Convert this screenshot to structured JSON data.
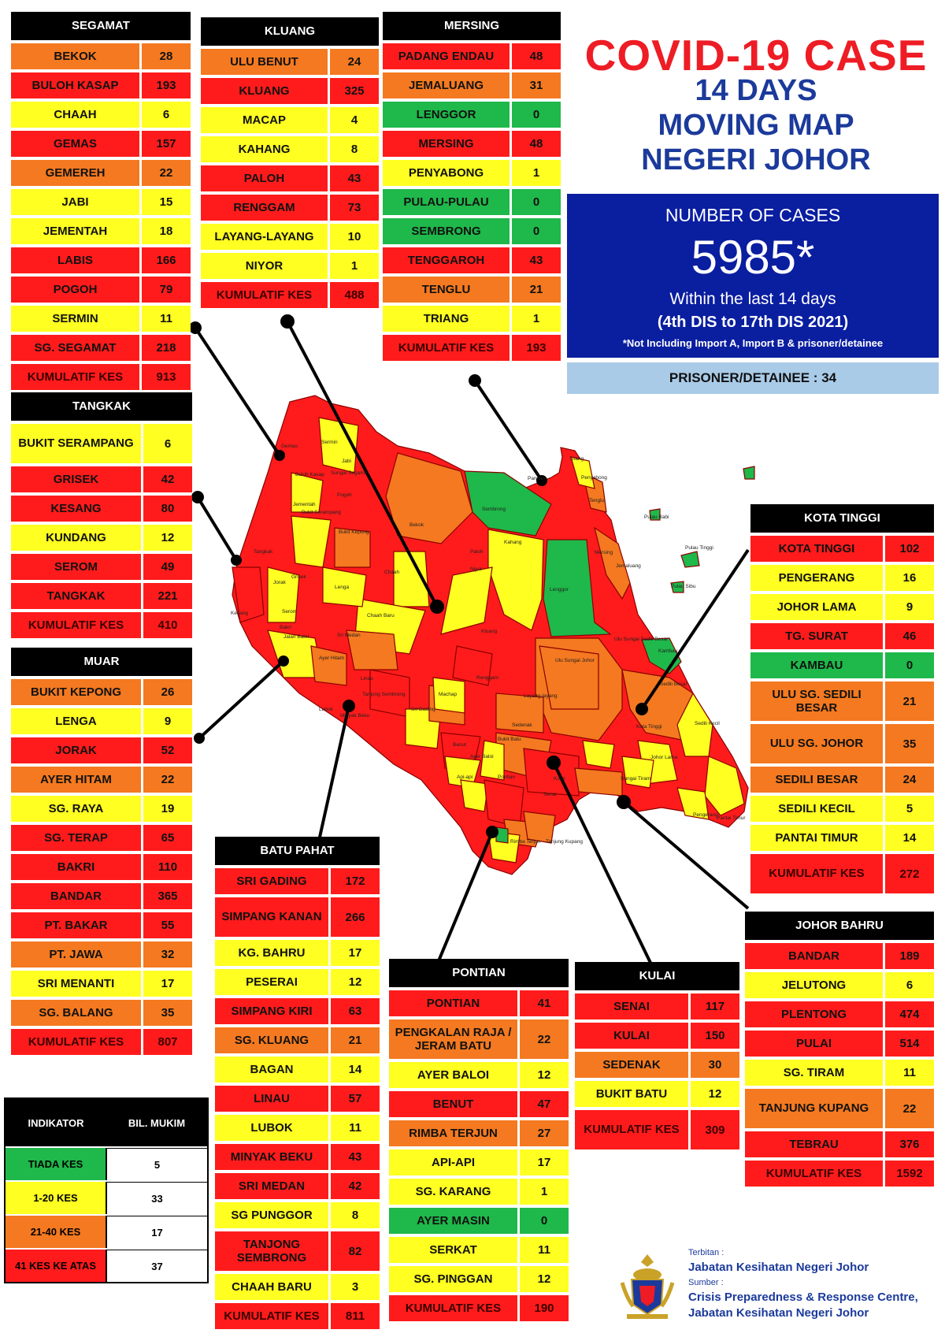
{
  "title": {
    "line1": "COVID-19 CASE",
    "line2": "14 DAYS",
    "line3": "MOVING MAP",
    "line4": "NEGERI JOHOR"
  },
  "summary": {
    "label": "NUMBER OF CASES",
    "number": "5985*",
    "within": "Within the last 14 days",
    "dates": "(4th DIS to 17th DIS 2021)",
    "note": "*Not Including Import A, Import B & prisoner/detainee",
    "prisoner": "PRISONER/DETAINEE : 34"
  },
  "colors": {
    "tiada": "#1fb84a",
    "low": "#ffff21",
    "mid": "#f47920",
    "high": "#ff1b1b",
    "title_red": "#ee1c24",
    "title_blue": "#1b3a9b",
    "summary_bg": "#0a1ea0"
  },
  "districts": [
    {
      "key": "segamat",
      "name": "SEGAMAT",
      "rows": [
        {
          "name": "BEKOK",
          "value": "28"
        },
        {
          "name": "BULOH KASAP",
          "value": "193"
        },
        {
          "name": "CHAAH",
          "value": "6"
        },
        {
          "name": "GEMAS",
          "value": "157"
        },
        {
          "name": "GEMEREH",
          "value": "22"
        },
        {
          "name": "JABI",
          "value": "15"
        },
        {
          "name": "JEMENTAH",
          "value": "18"
        },
        {
          "name": "LABIS",
          "value": "166"
        },
        {
          "name": "POGOH",
          "value": "79"
        },
        {
          "name": "SERMIN",
          "value": "11"
        },
        {
          "name": "SG. SEGAMAT",
          "value": "218"
        },
        {
          "name": "KUMULATIF KES",
          "value": "913",
          "total": true
        }
      ]
    },
    {
      "key": "kluang",
      "name": "KLUANG",
      "rows": [
        {
          "name": "ULU BENUT",
          "value": "24"
        },
        {
          "name": "KLUANG",
          "value": "325"
        },
        {
          "name": "MACAP",
          "value": "4"
        },
        {
          "name": "KAHANG",
          "value": "8"
        },
        {
          "name": "PALOH",
          "value": "43"
        },
        {
          "name": "RENGGAM",
          "value": "73"
        },
        {
          "name": "LAYANG-LAYANG",
          "value": "10"
        },
        {
          "name": "NIYOR",
          "value": "1"
        },
        {
          "name": "KUMULATIF KES",
          "value": "488",
          "total": true
        }
      ]
    },
    {
      "key": "mersing",
      "name": "MERSING",
      "rows": [
        {
          "name": "PADANG ENDAU",
          "value": "48"
        },
        {
          "name": "JEMALUANG",
          "value": "31"
        },
        {
          "name": "LENGGOR",
          "value": "0"
        },
        {
          "name": "MERSING",
          "value": "48"
        },
        {
          "name": "PENYABONG",
          "value": "1"
        },
        {
          "name": "PULAU-PULAU",
          "value": "0"
        },
        {
          "name": "SEMBRONG",
          "value": "0"
        },
        {
          "name": "TENGGAROH",
          "value": "43"
        },
        {
          "name": "TENGLU",
          "value": "21"
        },
        {
          "name": "TRIANG",
          "value": "1"
        },
        {
          "name": "KUMULATIF KES",
          "value": "193",
          "total": true
        }
      ]
    },
    {
      "key": "tangkak",
      "name": "TANGKAK",
      "rows": [
        {
          "name": "BUKIT SERAMPANG",
          "value": "6",
          "tall": true
        },
        {
          "name": "GRISEK",
          "value": "42"
        },
        {
          "name": "KESANG",
          "value": "80"
        },
        {
          "name": "KUNDANG",
          "value": "12"
        },
        {
          "name": "SEROM",
          "value": "49"
        },
        {
          "name": "TANGKAK",
          "value": "221"
        },
        {
          "name": "KUMULATIF KES",
          "value": "410",
          "total": true
        }
      ]
    },
    {
      "key": "muar",
      "name": "MUAR",
      "rows": [
        {
          "name": "BUKIT KEPONG",
          "value": "26"
        },
        {
          "name": "LENGA",
          "value": "9"
        },
        {
          "name": "JORAK",
          "value": "52"
        },
        {
          "name": "AYER HITAM",
          "value": "22"
        },
        {
          "name": "SG. RAYA",
          "value": "19"
        },
        {
          "name": "SG. TERAP",
          "value": "65"
        },
        {
          "name": "BAKRI",
          "value": "110"
        },
        {
          "name": "BANDAR",
          "value": "365"
        },
        {
          "name": "PT. BAKAR",
          "value": "55"
        },
        {
          "name": "PT. JAWA",
          "value": "32"
        },
        {
          "name": "SRI MENANTI",
          "value": "17"
        },
        {
          "name": "SG. BALANG",
          "value": "35"
        },
        {
          "name": "KUMULATIF KES",
          "value": "807",
          "total": true
        }
      ]
    },
    {
      "key": "kotatinggi",
      "name": "KOTA TINGGI",
      "rows": [
        {
          "name": "KOTA TINGGI",
          "value": "102"
        },
        {
          "name": "PENGERANG",
          "value": "16"
        },
        {
          "name": "JOHOR LAMA",
          "value": "9"
        },
        {
          "name": "TG. SURAT",
          "value": "46"
        },
        {
          "name": "KAMBAU",
          "value": "0"
        },
        {
          "name": "ULU SG. SEDILI BESAR",
          "value": "21",
          "tall": true
        },
        {
          "name": "ULU  SG. JOHOR",
          "value": "35",
          "tall": true
        },
        {
          "name": "SEDILI BESAR",
          "value": "24"
        },
        {
          "name": "SEDILI KECIL",
          "value": "5"
        },
        {
          "name": "PANTAI TIMUR",
          "value": "14"
        },
        {
          "name": "KUMULATIF KES",
          "value": "272",
          "total": true,
          "tall": true
        }
      ]
    },
    {
      "key": "batupahat",
      "name": "BATU PAHAT",
      "rows": [
        {
          "name": "SRI GADING",
          "value": "172"
        },
        {
          "name": "SIMPANG KANAN",
          "value": "266",
          "tall": true
        },
        {
          "name": "KG. BAHRU",
          "value": "17"
        },
        {
          "name": "PESERAI",
          "value": "12"
        },
        {
          "name": "SIMPANG KIRI",
          "value": "63"
        },
        {
          "name": "SG. KLUANG",
          "value": "21"
        },
        {
          "name": "BAGAN",
          "value": "14"
        },
        {
          "name": "LINAU",
          "value": "57"
        },
        {
          "name": "LUBOK",
          "value": "11"
        },
        {
          "name": "MINYAK BEKU",
          "value": "43"
        },
        {
          "name": "SRI MEDAN",
          "value": "42"
        },
        {
          "name": "SG PUNGGOR",
          "value": "8"
        },
        {
          "name": "TANJONG SEMBRONG",
          "value": "82",
          "tall": true
        },
        {
          "name": "CHAAH BARU",
          "value": "3"
        },
        {
          "name": "KUMULATIF KES",
          "value": "811",
          "total": true
        }
      ]
    },
    {
      "key": "pontian",
      "name": "PONTIAN",
      "rows": [
        {
          "name": "PONTIAN",
          "value": "41"
        },
        {
          "name": "PENGKALAN RAJA / JERAM BATU",
          "value": "22",
          "tall": true
        },
        {
          "name": "AYER BALOI",
          "value": "12"
        },
        {
          "name": "BENUT",
          "value": "47"
        },
        {
          "name": "RIMBA TERJUN",
          "value": "27"
        },
        {
          "name": "API-API",
          "value": "17"
        },
        {
          "name": "SG. KARANG",
          "value": "1"
        },
        {
          "name": "AYER MASIN",
          "value": "0"
        },
        {
          "name": "SERKAT",
          "value": "11"
        },
        {
          "name": "SG. PINGGAN",
          "value": "12"
        },
        {
          "name": "KUMULATIF KES",
          "value": "190",
          "total": true
        }
      ]
    },
    {
      "key": "kulai",
      "name": "KULAI",
      "rows": [
        {
          "name": "SENAI",
          "value": "117"
        },
        {
          "name": "KULAI",
          "value": "150"
        },
        {
          "name": "SEDENAK",
          "value": "30"
        },
        {
          "name": "BUKIT BATU",
          "value": "12"
        },
        {
          "name": "KUMULATIF KES",
          "value": "309",
          "total": true,
          "tall": true
        }
      ]
    },
    {
      "key": "johorbahru",
      "name": "JOHOR BAHRU",
      "rows": [
        {
          "name": "BANDAR",
          "value": "189"
        },
        {
          "name": "JELUTONG",
          "value": "6"
        },
        {
          "name": "PLENTONG",
          "value": "474"
        },
        {
          "name": "PULAI",
          "value": "514"
        },
        {
          "name": "SG. TIRAM",
          "value": "11"
        },
        {
          "name": "TANJUNG KUPANG",
          "value": "22",
          "tall": true
        },
        {
          "name": "TEBRAU",
          "value": "376"
        },
        {
          "name": "KUMULATIF KES",
          "value": "1592",
          "total": true
        }
      ]
    }
  ],
  "legend": {
    "header_indicator": "INDIKATOR",
    "header_count": "BIL. MUKIM",
    "rows": [
      {
        "label": "TIADA KES",
        "count": "5",
        "color": "#1fb84a"
      },
      {
        "label": "1-20 KES",
        "count": "33",
        "color": "#ffff21"
      },
      {
        "label": "21-40 KES",
        "count": "17",
        "color": "#f47920"
      },
      {
        "label": "41 KES KE ATAS",
        "count": "37",
        "color": "#ff1b1b"
      }
    ]
  },
  "credits": {
    "terbitan_label": "Terbitan :",
    "terbitan": "Jabatan Kesihatan Negeri Johor",
    "sumber_label": "Sumber :",
    "sumber1": "Crisis Preparedness & Response Centre,",
    "sumber2": "Jabatan Kesihatan Negeri Johor"
  },
  "map_labels": [
    "Gemas",
    "Sermin",
    "Jabi",
    "Sungai Segamat",
    "Buloh Kasap",
    "Pogoh",
    "Jementah",
    "Bukit Serampang",
    "Bekok",
    "Sembrong",
    "Triang",
    "Penyabong",
    "Pandan",
    "Tenglu",
    "Pulau Babi",
    "Pulau Tinggi",
    "Pulau Sibu",
    "Jemaluang",
    "Mersing",
    "Kahang",
    "Lenggor",
    "Paloh",
    "Niyor",
    "Kluang",
    "Chaah",
    "Chaah Baru",
    "Bukit Kepong",
    "Lenga",
    "Tangkak",
    "Grisek",
    "Jorak",
    "Serom",
    "Kesang",
    "Ayer Hitam",
    "Sri Medan",
    "Tanjong Sembrong",
    "Bakri",
    "Jalan Bakri",
    "Renggam",
    "Layang-layang",
    "Ulu Sungai Sedili Besar",
    "Kambau",
    "Ulu Sungai Johor",
    "Sedili Besar",
    "Sedili Kecil",
    "Kota Tinggi",
    "Johor Lama",
    "Sungai Tiram",
    "Pengerang",
    "Pantai Timur",
    "Machap",
    "Sri Gading",
    "Linau",
    "Lubok",
    "Minyak Beku",
    "Benut",
    "Sedenak",
    "Bukit Batu",
    "Ayer Baloi",
    "Api-api",
    "Pontian",
    "Senai",
    "Kulai",
    "Rimba Terjun",
    "Tanjung Kupang"
  ]
}
